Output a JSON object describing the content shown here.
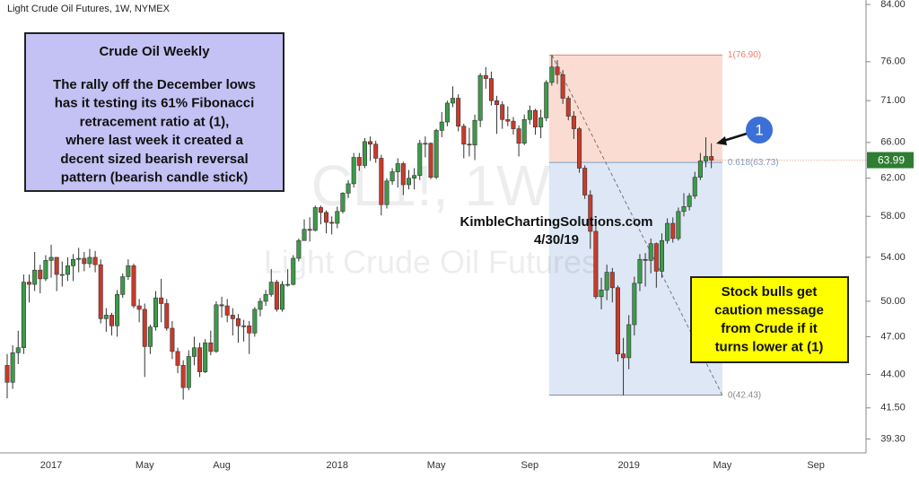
{
  "chart_data": {
    "type": "candlestick",
    "title": "Light Crude Oil Futures, 1W, NYMEX",
    "watermark": [
      "CL1!, 1W",
      "Light Crude Oil Futures"
    ],
    "categories": [
      null,
      null,
      null,
      null,
      null,
      null,
      null,
      null,
      "2017",
      null,
      null,
      null,
      null,
      null,
      null,
      null,
      null,
      null,
      null,
      null,
      null,
      null,
      null,
      null,
      null,
      "May",
      null,
      null,
      null,
      null,
      null,
      null,
      null,
      null,
      null,
      null,
      null,
      null,
      null,
      "Aug",
      null,
      null,
      null,
      null,
      null,
      null,
      null,
      null,
      null,
      null,
      null,
      null,
      null,
      null,
      null,
      null,
      null,
      null,
      null,
      null,
      "2018",
      null,
      null,
      null,
      null,
      null,
      null,
      null,
      null,
      null,
      null,
      null,
      null,
      null,
      null,
      null,
      null,
      null,
      "May",
      null,
      null,
      null,
      null,
      null,
      null,
      null,
      null,
      null,
      null,
      null,
      null,
      null,
      null,
      null,
      null,
      "Sep",
      null,
      null,
      null,
      null,
      null,
      null,
      null,
      null,
      null,
      null,
      null,
      null,
      null,
      null,
      null,
      null,
      null,
      "2019",
      null,
      null,
      null,
      null,
      null,
      null,
      null,
      null,
      null,
      null,
      null,
      null,
      null,
      null,
      null,
      null,
      "May",
      null,
      null,
      null,
      null,
      null,
      null,
      null,
      null,
      null,
      null,
      null,
      null,
      null,
      null,
      null,
      null,
      "Sep",
      null,
      null,
      null,
      null,
      null,
      null,
      null,
      null,
      null
    ],
    "open": [
      44.7,
      43.4,
      45.7,
      46.1,
      51.7,
      51.5,
      52.8,
      52.0,
      53.7,
      53.99,
      52.4,
      52.4,
      53.2,
      53.8,
      53.9,
      53.4,
      53.99,
      53.3,
      48.5,
      48.8,
      47.9,
      50.6,
      52.2,
      53.2,
      49.6,
      49.3,
      46.2,
      47.8,
      50.3,
      49.8,
      47.7,
      45.8,
      44.7,
      43.0,
      45.4,
      46.1,
      44.2,
      46.5,
      45.8,
      49.7,
      49.6,
      48.8,
      48.5,
      47.9,
      47.9,
      47.3,
      49.3,
      50.0,
      50.6,
      51.7,
      49.3,
      51.5,
      51.5,
      53.9,
      55.6,
      56.7,
      56.6,
      58.9,
      58.4,
      57.4,
      57.3,
      58.5,
      60.4,
      61.4,
      64.3,
      63.4,
      66.1,
      65.8,
      64.2,
      59.2,
      61.7,
      62.7,
      63.6,
      61.3,
      62.0,
      62.3,
      65.9,
      65.9,
      62.1,
      67.4,
      68.4,
      70.7,
      71.3,
      67.9,
      65.8,
      65.7,
      68.6,
      74.2,
      73.8,
      71.0,
      70.5,
      68.7,
      68.5,
      67.6,
      65.9,
      68.7,
      69.8,
      67.8,
      68.9,
      73.3,
      75.3,
      74.3,
      71.3,
      69.1,
      67.6,
      63.1,
      60.2,
      56.5,
      50.4,
      51.0,
      52.6,
      51.2,
      45.6,
      45.3,
      48.0,
      51.6,
      53.8,
      53.7,
      55.3,
      52.7,
      55.6,
      57.3,
      55.8,
      58.5,
      59.0,
      60.1,
      62.1,
      63.9,
      64.4,
      null,
      null,
      null,
      null,
      null,
      null,
      null,
      null,
      null,
      null,
      null,
      null,
      null,
      null,
      null,
      null,
      null,
      null,
      null,
      null,
      null,
      null,
      null,
      null,
      null,
      null,
      null,
      null
    ],
    "high": [
      45.6,
      46.3,
      47.5,
      52.4,
      52.4,
      54.5,
      53.3,
      54.2,
      55.2,
      54.0,
      53.6,
      54.0,
      54.3,
      54.9,
      54.5,
      54.8,
      54.6,
      53.8,
      49.4,
      49.0,
      51.0,
      52.5,
      53.8,
      53.4,
      50.2,
      49.8,
      48.0,
      50.9,
      52.0,
      50.2,
      48.3,
      46.1,
      45.1,
      45.9,
      47.0,
      46.5,
      46.8,
      47.5,
      50.0,
      50.4,
      50.2,
      49.4,
      48.9,
      48.4,
      48.3,
      49.5,
      50.3,
      51.0,
      52.9,
      51.9,
      51.8,
      52.9,
      54.2,
      55.8,
      57.7,
      57.9,
      59.1,
      59.1,
      58.6,
      58.0,
      59.0,
      60.5,
      61.8,
      64.8,
      64.8,
      66.5,
      66.7,
      66.2,
      64.6,
      62.0,
      63.1,
      64.2,
      63.8,
      62.9,
      63.1,
      66.3,
      66.7,
      66.0,
      67.6,
      69.6,
      71.0,
      72.8,
      71.8,
      68.2,
      67.7,
      69.3,
      74.5,
      75.3,
      74.7,
      71.6,
      70.9,
      70.3,
      69.0,
      68.0,
      69.3,
      70.4,
      70.0,
      69.9,
      73.6,
      76.9,
      76.2,
      74.9,
      71.6,
      69.7,
      67.8,
      63.4,
      60.7,
      57.2,
      52.1,
      53.3,
      53.0,
      51.4,
      46.9,
      48.8,
      52.2,
      54.3,
      54.4,
      55.8,
      55.4,
      56.3,
      57.8,
      57.9,
      58.9,
      60.4,
      60.4,
      62.7,
      64.8,
      66.6,
      65.9,
      null,
      null,
      null,
      null,
      null,
      null,
      null,
      null,
      null,
      null,
      null,
      null,
      null,
      null,
      null,
      null,
      null,
      null,
      null,
      null,
      null,
      null,
      null,
      null,
      null,
      null,
      null,
      null
    ],
    "low": [
      42.2,
      42.9,
      44.8,
      45.6,
      49.9,
      50.9,
      50.7,
      51.8,
      52.1,
      50.9,
      51.3,
      51.8,
      51.8,
      52.6,
      52.7,
      53.0,
      52.6,
      48.1,
      47.4,
      47.1,
      47.0,
      50.3,
      51.9,
      49.4,
      48.2,
      43.8,
      45.6,
      47.5,
      48.2,
      47.5,
      45.2,
      44.1,
      42.1,
      42.8,
      44.7,
      43.8,
      44.1,
      45.5,
      45.7,
      48.6,
      48.2,
      47.1,
      46.5,
      46.6,
      45.6,
      47.0,
      48.7,
      49.6,
      50.4,
      49.1,
      49.1,
      51.3,
      51.4,
      53.6,
      55.6,
      55.5,
      56.5,
      57.2,
      56.3,
      56.2,
      56.8,
      58.3,
      59.9,
      61.0,
      62.8,
      63.1,
      63.9,
      63.7,
      58.1,
      58.8,
      61.3,
      61.0,
      60.2,
      60.8,
      60.8,
      61.8,
      64.3,
      61.9,
      61.9,
      66.6,
      67.9,
      70.2,
      67.3,
      64.2,
      64.4,
      64.0,
      67.8,
      72.5,
      70.4,
      67.0,
      67.6,
      67.9,
      66.9,
      64.4,
      65.7,
      68.1,
      66.9,
      66.5,
      68.5,
      72.9,
      73.1,
      70.6,
      68.6,
      66.4,
      62.6,
      59.8,
      54.8,
      50.2,
      49.3,
      50.1,
      49.9,
      45.0,
      42.43,
      44.4,
      47.1,
      50.9,
      51.3,
      52.5,
      51.2,
      52.1,
      55.3,
      55.4,
      55.6,
      58.0,
      58.6,
      59.8,
      61.8,
      63.2,
      63.1,
      null,
      null,
      null,
      null,
      null,
      null,
      null,
      null,
      null,
      null,
      null,
      null,
      null,
      null,
      null,
      null,
      null,
      null,
      null,
      null,
      null,
      null,
      null,
      null,
      null,
      null,
      null,
      null
    ],
    "close": [
      43.4,
      45.7,
      46.1,
      51.7,
      51.5,
      52.8,
      52.0,
      53.7,
      53.99,
      52.4,
      52.4,
      53.2,
      53.8,
      53.9,
      53.4,
      53.99,
      53.3,
      48.5,
      48.8,
      47.9,
      50.6,
      52.2,
      53.2,
      49.6,
      49.3,
      46.2,
      47.8,
      50.3,
      49.8,
      47.7,
      45.8,
      44.7,
      43.0,
      45.4,
      46.1,
      44.2,
      46.5,
      45.8,
      49.7,
      49.6,
      48.8,
      48.5,
      47.9,
      47.9,
      47.3,
      49.3,
      50.0,
      50.6,
      51.7,
      49.3,
      51.5,
      51.5,
      53.9,
      55.6,
      56.7,
      56.6,
      58.9,
      58.4,
      57.4,
      57.3,
      58.5,
      60.4,
      61.4,
      64.3,
      63.4,
      66.1,
      65.8,
      64.2,
      59.2,
      61.7,
      62.7,
      63.6,
      61.3,
      62.0,
      62.3,
      65.9,
      65.9,
      62.1,
      67.4,
      68.4,
      70.7,
      71.3,
      67.9,
      65.8,
      65.7,
      68.6,
      74.2,
      73.8,
      71.0,
      70.5,
      68.7,
      68.5,
      67.6,
      65.9,
      68.7,
      69.8,
      67.8,
      68.9,
      73.3,
      75.3,
      74.3,
      71.3,
      69.1,
      67.6,
      63.1,
      60.2,
      56.5,
      50.4,
      51.0,
      52.6,
      51.2,
      45.6,
      45.3,
      48.0,
      51.6,
      53.8,
      53.7,
      55.3,
      52.7,
      55.6,
      57.3,
      55.8,
      58.5,
      59.0,
      60.1,
      62.1,
      63.9,
      64.4,
      63.99,
      null,
      null,
      null,
      null,
      null,
      null,
      null,
      null,
      null,
      null,
      null,
      null,
      null,
      null,
      null,
      null,
      null,
      null,
      null,
      null,
      null,
      null,
      null,
      null,
      null,
      null,
      null,
      null
    ],
    "up_color": "#3d9a4a",
    "down_color": "#c93a2b",
    "log_scale": true,
    "ylim": [
      38.36,
      84.66
    ],
    "yticks": [
      {
        "value": 39.3,
        "label": "39.30"
      },
      {
        "value": 41.5,
        "label": "41.50"
      },
      {
        "value": 44,
        "label": "44.00"
      },
      {
        "value": 47,
        "label": "47.00"
      },
      {
        "value": 50,
        "label": "50.00"
      },
      {
        "value": 54,
        "label": "54.00"
      },
      {
        "value": 58,
        "label": "58.00"
      },
      {
        "value": 62,
        "label": "62.00"
      },
      {
        "value": 66,
        "label": "66.00"
      },
      {
        "value": 71,
        "label": "71.00"
      },
      {
        "value": 76,
        "label": "76.00"
      },
      {
        "value": 84,
        "label": "84.00"
      }
    ],
    "last_price": 63.99,
    "fib_levels": [
      {
        "value": 76.9,
        "label": "1(76.90)"
      },
      {
        "value": 63.73,
        "label": "0.618(63.73)"
      },
      {
        "value": 42.43,
        "label": "0(42.43)"
      }
    ],
    "annotations": {
      "commentary": {
        "title": "Crude Oil Weekly",
        "lines": [
          "The rally off the December lows",
          "has it testing its 61% Fibonacci",
          "retracement ratio at (1),",
          "where last week it created a",
          "decent sized bearish reversal",
          "pattern (bearish candle stick)"
        ]
      },
      "caution": {
        "lines": [
          "Stock bulls get",
          "caution message",
          "from Crude if it",
          "turns lower at (1)"
        ]
      },
      "credit": "KimbleChartingSolutions.com",
      "date": "4/30/19",
      "marker": "1"
    }
  }
}
